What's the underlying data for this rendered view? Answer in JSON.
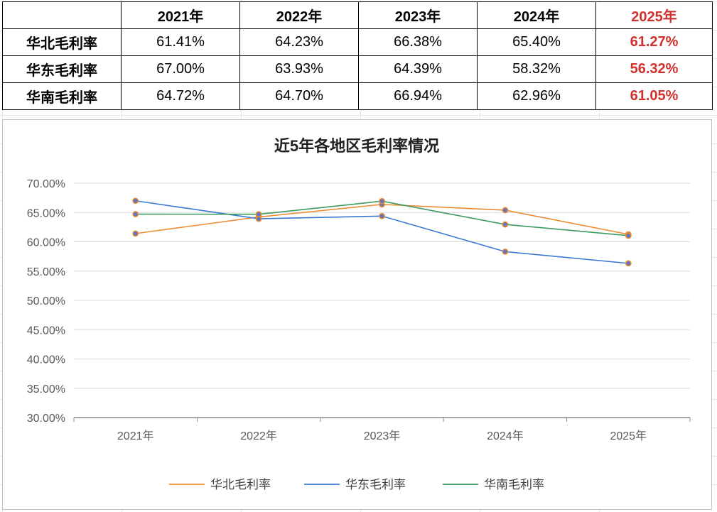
{
  "table": {
    "years": [
      "2021年",
      "2022年",
      "2023年",
      "2024年",
      "2025年"
    ],
    "rows": [
      {
        "label": "华北毛利率",
        "values": [
          "61.41%",
          "64.23%",
          "66.38%",
          "65.40%",
          "61.27%"
        ]
      },
      {
        "label": "华东毛利率",
        "values": [
          "67.00%",
          "63.93%",
          "64.39%",
          "58.32%",
          "56.32%"
        ]
      },
      {
        "label": "华南毛利率",
        "values": [
          "64.72%",
          "64.70%",
          "66.94%",
          "62.96%",
          "61.05%"
        ]
      }
    ],
    "highlight_color": "#d0312d"
  },
  "chart_data": {
    "type": "line",
    "title": "近5年各地区毛利率情况",
    "categories": [
      "2021年",
      "2022年",
      "2023年",
      "2024年",
      "2025年"
    ],
    "yticks": [
      "30.00%",
      "35.00%",
      "40.00%",
      "45.00%",
      "50.00%",
      "55.00%",
      "60.00%",
      "65.00%",
      "70.00%"
    ],
    "ylim": [
      30,
      70
    ],
    "grid": true,
    "legend_position": "bottom",
    "series": [
      {
        "name": "华北毛利率",
        "color": "#ed8b32",
        "values": [
          61.41,
          64.23,
          66.38,
          65.4,
          61.27
        ]
      },
      {
        "name": "华东毛利率",
        "color": "#3a78d6",
        "values": [
          67.0,
          63.93,
          64.39,
          58.32,
          56.32
        ]
      },
      {
        "name": "华南毛利率",
        "color": "#3c9a5f",
        "values": [
          64.72,
          64.7,
          66.94,
          62.96,
          61.05
        ]
      }
    ],
    "marker_color": "#5b74c4",
    "marker_edge_color": "#ed8b32"
  }
}
